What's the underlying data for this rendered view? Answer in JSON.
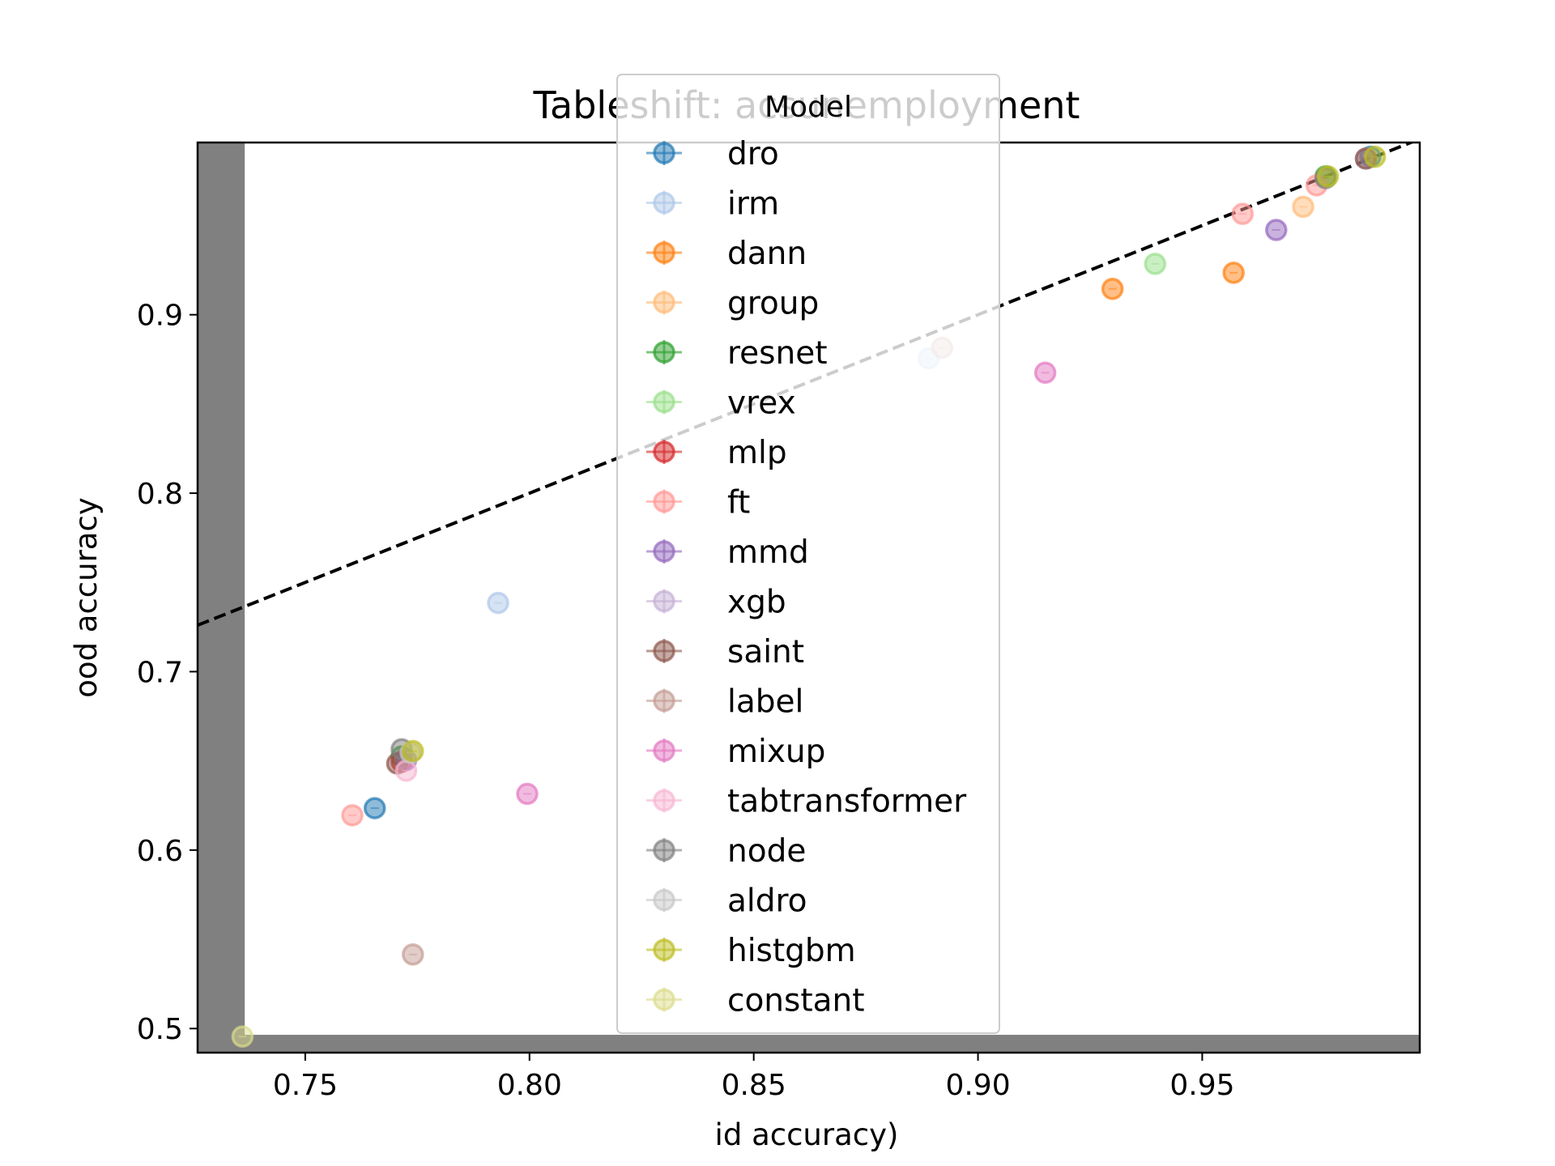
{
  "chart_data": {
    "type": "scatter",
    "title": "Tableshift: acsunemployment",
    "xlabel": "id accuracy)",
    "ylabel": "ood accuracy",
    "xlim": [
      0.726,
      0.9985
    ],
    "ylim": [
      0.4865,
      0.9965
    ],
    "xticks": [
      {
        "value": 0.75,
        "label": "0.75"
      },
      {
        "value": 0.8,
        "label": "0.80"
      },
      {
        "value": 0.85,
        "label": "0.85"
      },
      {
        "value": 0.9,
        "label": "0.90"
      },
      {
        "value": 0.95,
        "label": "0.95"
      }
    ],
    "yticks": [
      {
        "value": 0.5,
        "label": "0.5"
      },
      {
        "value": 0.6,
        "label": "0.6"
      },
      {
        "value": 0.7,
        "label": "0.7"
      },
      {
        "value": 0.8,
        "label": "0.8"
      },
      {
        "value": 0.9,
        "label": "0.9"
      }
    ],
    "reference_line": {
      "style": "dashed",
      "color": "#000000",
      "points": [
        [
          0.726,
          0.726
        ],
        [
          0.9985,
          0.9985
        ]
      ]
    },
    "shaded_regions": [
      {
        "axis": "x",
        "from": 0.726,
        "to": 0.7365,
        "color": "#808080"
      },
      {
        "axis": "y",
        "from": 0.4865,
        "to": 0.4965,
        "color": "#808080"
      }
    ],
    "legend": {
      "title": "Model",
      "placement": "top-center"
    },
    "series": [
      {
        "name": "dro",
        "color": "#1f77b4",
        "points": [
          [
            0.7655,
            0.6235
          ],
          [
            0.9875,
            0.9885
          ]
        ]
      },
      {
        "name": "irm",
        "color": "#aec7e8",
        "points": [
          [
            0.793,
            0.7385
          ],
          [
            0.889,
            0.8755
          ]
        ]
      },
      {
        "name": "dann",
        "color": "#ff7f0e",
        "points": [
          [
            0.93,
            0.9145
          ],
          [
            0.957,
            0.9235
          ]
        ]
      },
      {
        "name": "group",
        "color": "#ffbb78",
        "points": [
          [
            0.9725,
            0.9605
          ]
        ]
      },
      {
        "name": "resnet",
        "color": "#2ca02c",
        "points": [
          [
            0.7715,
            0.6525
          ],
          [
            0.9775,
            0.9775
          ]
        ]
      },
      {
        "name": "vrex",
        "color": "#98df8a",
        "points": [
          [
            0.9395,
            0.9285
          ]
        ]
      },
      {
        "name": "mlp",
        "color": "#d62728",
        "points": [
          [
            0.7715,
            0.6495
          ]
        ]
      },
      {
        "name": "ft",
        "color": "#ff9896",
        "points": [
          [
            0.7605,
            0.6195
          ],
          [
            0.959,
            0.9565
          ],
          [
            0.9755,
            0.9725
          ]
        ]
      },
      {
        "name": "mmd",
        "color": "#9467bd",
        "points": [
          [
            0.9665,
            0.9475
          ],
          [
            0.7725,
            0.6505
          ]
        ]
      },
      {
        "name": "xgb",
        "color": "#c5b0d5",
        "points": [
          [
            0.9865,
            0.9875
          ]
        ]
      },
      {
        "name": "saint",
        "color": "#8c564b",
        "points": [
          [
            0.7705,
            0.6485
          ],
          [
            0.9865,
            0.9875
          ]
        ]
      },
      {
        "name": "label",
        "color": "#c49c94",
        "points": [
          [
            0.774,
            0.5415
          ],
          [
            0.892,
            0.8815
          ]
        ]
      },
      {
        "name": "mixup",
        "color": "#e377c2",
        "points": [
          [
            0.7995,
            0.6315
          ],
          [
            0.915,
            0.8675
          ]
        ]
      },
      {
        "name": "tabtransformer",
        "color": "#f7b6d2",
        "points": [
          [
            0.7725,
            0.6445
          ]
        ]
      },
      {
        "name": "node",
        "color": "#7f7f7f",
        "points": [
          [
            0.7715,
            0.6565
          ],
          [
            0.9775,
            0.9765
          ]
        ]
      },
      {
        "name": "aldro",
        "color": "#c7c7c7",
        "points": [
          [
            0.7735,
            0.6545
          ]
        ]
      },
      {
        "name": "histgbm",
        "color": "#bcbd22",
        "points": [
          [
            0.774,
            0.6555
          ],
          [
            0.978,
            0.9775
          ],
          [
            0.9885,
            0.9885
          ]
        ]
      },
      {
        "name": "constant",
        "color": "#dbdb8d",
        "points": [
          [
            0.736,
            0.4955
          ]
        ]
      }
    ]
  }
}
